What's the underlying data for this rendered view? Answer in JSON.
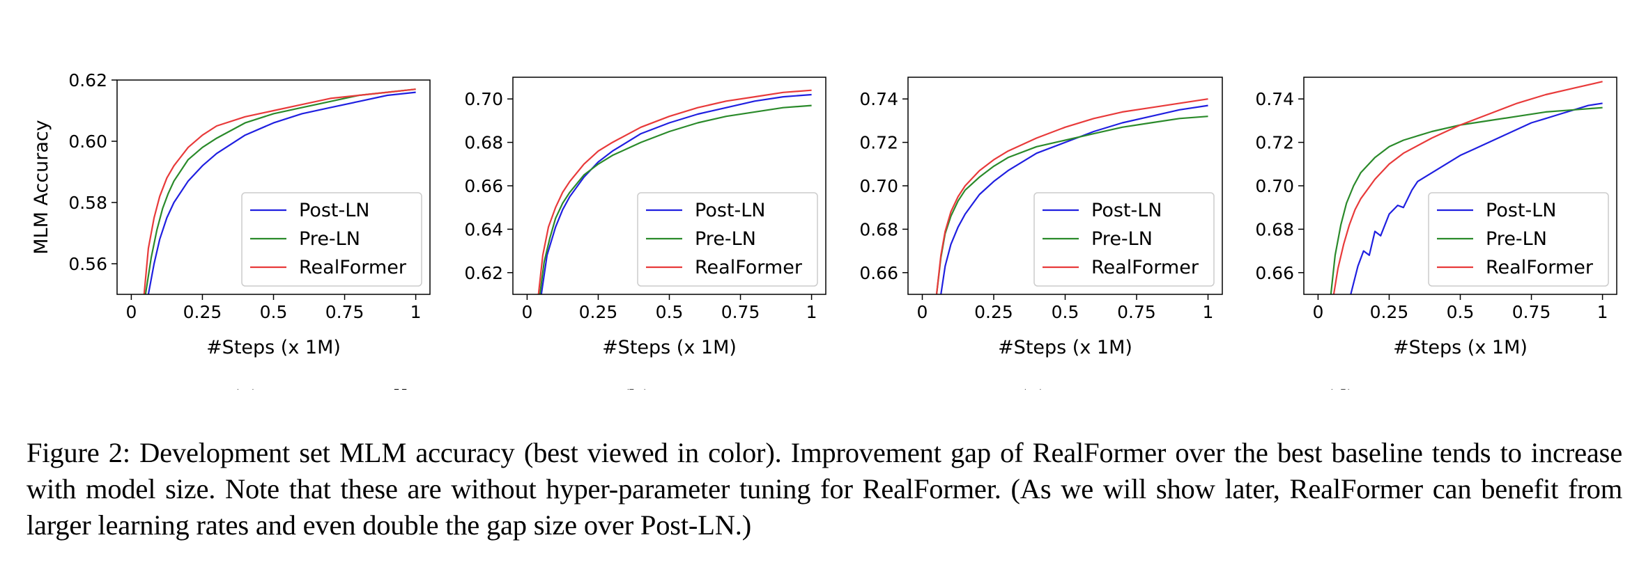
{
  "chart_data": [
    {
      "type": "line",
      "subcaption": "(a) BERT-Small",
      "xlabel": "#Steps (x 1M)",
      "ylabel": "MLM Accuracy",
      "xlim": [
        -0.05,
        1.05
      ],
      "ylim": [
        0.55,
        0.62
      ],
      "xticks": [
        0,
        0.25,
        0.5,
        0.75,
        1
      ],
      "xtick_labels": [
        "0",
        "0.25",
        "0.5",
        "0.75",
        "1"
      ],
      "yticks": [
        0.56,
        0.58,
        0.6,
        0.62
      ],
      "ytick_labels": [
        "0.56",
        "0.58",
        "0.60",
        "0.62"
      ],
      "legend_position": "lower-right",
      "series": [
        {
          "name": "Post-LN",
          "color": "#1f1fe0",
          "x": [
            0.06,
            0.08,
            0.1,
            0.125,
            0.15,
            0.2,
            0.25,
            0.3,
            0.4,
            0.5,
            0.6,
            0.7,
            0.8,
            0.9,
            1.0
          ],
          "y": [
            0.55,
            0.56,
            0.568,
            0.575,
            0.58,
            0.587,
            0.592,
            0.596,
            0.602,
            0.606,
            0.609,
            0.611,
            0.613,
            0.615,
            0.616
          ]
        },
        {
          "name": "Pre-LN",
          "color": "#2a8a2a",
          "x": [
            0.05,
            0.07,
            0.09,
            0.11,
            0.13,
            0.15,
            0.2,
            0.25,
            0.3,
            0.4,
            0.5,
            0.6,
            0.7,
            0.8,
            0.9,
            1.0
          ],
          "y": [
            0.55,
            0.562,
            0.571,
            0.578,
            0.583,
            0.587,
            0.594,
            0.598,
            0.601,
            0.606,
            0.609,
            0.611,
            0.613,
            0.615,
            0.616,
            0.617
          ]
        },
        {
          "name": "RealFormer",
          "color": "#e83a3a",
          "x": [
            0.045,
            0.06,
            0.08,
            0.1,
            0.125,
            0.15,
            0.2,
            0.25,
            0.3,
            0.4,
            0.5,
            0.6,
            0.7,
            0.8,
            0.9,
            1.0
          ],
          "y": [
            0.55,
            0.565,
            0.575,
            0.582,
            0.588,
            0.592,
            0.598,
            0.602,
            0.605,
            0.608,
            0.61,
            0.612,
            0.614,
            0.615,
            0.616,
            0.617
          ]
        }
      ]
    },
    {
      "type": "line",
      "subcaption": "(b) BERT-Base",
      "xlabel": "#Steps (x 1M)",
      "ylabel": "",
      "xlim": [
        -0.05,
        1.05
      ],
      "ylim": [
        0.61,
        0.71
      ],
      "xticks": [
        0,
        0.25,
        0.5,
        0.75,
        1
      ],
      "xtick_labels": [
        "0",
        "0.25",
        "0.5",
        "0.75",
        "1"
      ],
      "yticks": [
        0.62,
        0.64,
        0.66,
        0.68,
        0.7
      ],
      "ytick_labels": [
        "0.62",
        "0.64",
        "0.66",
        "0.68",
        "0.70"
      ],
      "legend_position": "lower-right",
      "series": [
        {
          "name": "Post-LN",
          "color": "#1f1fe0",
          "x": [
            0.05,
            0.07,
            0.1,
            0.125,
            0.15,
            0.2,
            0.25,
            0.3,
            0.4,
            0.5,
            0.6,
            0.7,
            0.8,
            0.9,
            1.0
          ],
          "y": [
            0.61,
            0.628,
            0.641,
            0.649,
            0.655,
            0.664,
            0.671,
            0.676,
            0.684,
            0.689,
            0.693,
            0.696,
            0.699,
            0.701,
            0.702
          ]
        },
        {
          "name": "Pre-LN",
          "color": "#2a8a2a",
          "x": [
            0.045,
            0.06,
            0.08,
            0.1,
            0.125,
            0.15,
            0.2,
            0.25,
            0.3,
            0.4,
            0.5,
            0.6,
            0.7,
            0.8,
            0.9,
            1.0
          ],
          "y": [
            0.61,
            0.625,
            0.636,
            0.645,
            0.652,
            0.657,
            0.665,
            0.67,
            0.674,
            0.68,
            0.685,
            0.689,
            0.692,
            0.694,
            0.696,
            0.697
          ]
        },
        {
          "name": "RealFormer",
          "color": "#e83a3a",
          "x": [
            0.04,
            0.055,
            0.075,
            0.1,
            0.125,
            0.15,
            0.2,
            0.25,
            0.3,
            0.4,
            0.5,
            0.6,
            0.7,
            0.8,
            0.9,
            1.0
          ],
          "y": [
            0.61,
            0.628,
            0.641,
            0.65,
            0.657,
            0.662,
            0.67,
            0.676,
            0.68,
            0.687,
            0.692,
            0.696,
            0.699,
            0.701,
            0.703,
            0.704
          ]
        }
      ]
    },
    {
      "type": "line",
      "subcaption": "(c) BERT-Large",
      "xlabel": "#Steps (x 1M)",
      "ylabel": "",
      "xlim": [
        -0.05,
        1.05
      ],
      "ylim": [
        0.65,
        0.75
      ],
      "xticks": [
        0,
        0.25,
        0.5,
        0.75,
        1
      ],
      "xtick_labels": [
        "0",
        "0.25",
        "0.5",
        "0.75",
        "1"
      ],
      "yticks": [
        0.66,
        0.68,
        0.7,
        0.72,
        0.74
      ],
      "ytick_labels": [
        "0.66",
        "0.68",
        "0.70",
        "0.72",
        "0.74"
      ],
      "legend_position": "lower-right",
      "series": [
        {
          "name": "Post-LN",
          "color": "#1f1fe0",
          "x": [
            0.065,
            0.08,
            0.1,
            0.125,
            0.15,
            0.2,
            0.25,
            0.3,
            0.4,
            0.5,
            0.6,
            0.7,
            0.8,
            0.9,
            1.0
          ],
          "y": [
            0.65,
            0.663,
            0.673,
            0.681,
            0.687,
            0.696,
            0.702,
            0.707,
            0.715,
            0.72,
            0.725,
            0.729,
            0.732,
            0.735,
            0.737
          ]
        },
        {
          "name": "Pre-LN",
          "color": "#2a8a2a",
          "x": [
            0.05,
            0.065,
            0.08,
            0.1,
            0.125,
            0.15,
            0.2,
            0.25,
            0.3,
            0.4,
            0.5,
            0.6,
            0.7,
            0.8,
            0.9,
            1.0
          ],
          "y": [
            0.65,
            0.667,
            0.678,
            0.686,
            0.693,
            0.698,
            0.704,
            0.709,
            0.713,
            0.718,
            0.721,
            0.724,
            0.727,
            0.729,
            0.731,
            0.732
          ]
        },
        {
          "name": "RealFormer",
          "color": "#e83a3a",
          "x": [
            0.05,
            0.065,
            0.08,
            0.1,
            0.125,
            0.15,
            0.2,
            0.25,
            0.3,
            0.4,
            0.5,
            0.6,
            0.7,
            0.8,
            0.9,
            1.0
          ],
          "y": [
            0.65,
            0.668,
            0.679,
            0.688,
            0.695,
            0.7,
            0.707,
            0.712,
            0.716,
            0.722,
            0.727,
            0.731,
            0.734,
            0.736,
            0.738,
            0.74
          ]
        }
      ]
    },
    {
      "type": "line",
      "subcaption": "(d) BERT-xLarge",
      "xlabel": "#Steps (x 1M)",
      "ylabel": "",
      "xlim": [
        -0.05,
        1.05
      ],
      "ylim": [
        0.65,
        0.75
      ],
      "xticks": [
        0,
        0.25,
        0.5,
        0.75,
        1
      ],
      "xtick_labels": [
        "0",
        "0.25",
        "0.5",
        "0.75",
        "1"
      ],
      "yticks": [
        0.66,
        0.68,
        0.7,
        0.72,
        0.74
      ],
      "ytick_labels": [
        "0.66",
        "0.68",
        "0.70",
        "0.72",
        "0.74"
      ],
      "legend_position": "lower-right",
      "series": [
        {
          "name": "Post-LN",
          "color": "#1f1fe0",
          "x": [
            0.115,
            0.14,
            0.16,
            0.18,
            0.2,
            0.22,
            0.25,
            0.28,
            0.3,
            0.33,
            0.35,
            0.4,
            0.45,
            0.5,
            0.55,
            0.6,
            0.65,
            0.7,
            0.75,
            0.8,
            0.85,
            0.9,
            0.95,
            1.0
          ],
          "y": [
            0.65,
            0.663,
            0.67,
            0.668,
            0.679,
            0.677,
            0.687,
            0.691,
            0.69,
            0.698,
            0.702,
            0.706,
            0.71,
            0.714,
            0.717,
            0.72,
            0.723,
            0.726,
            0.729,
            0.731,
            0.733,
            0.735,
            0.737,
            0.738
          ]
        },
        {
          "name": "Pre-LN",
          "color": "#2a8a2a",
          "x": [
            0.045,
            0.06,
            0.08,
            0.1,
            0.125,
            0.15,
            0.2,
            0.25,
            0.3,
            0.35,
            0.4,
            0.5,
            0.6,
            0.7,
            0.8,
            0.9,
            1.0
          ],
          "y": [
            0.65,
            0.668,
            0.682,
            0.692,
            0.7,
            0.706,
            0.713,
            0.718,
            0.721,
            0.723,
            0.725,
            0.728,
            0.73,
            0.732,
            0.734,
            0.735,
            0.736
          ]
        },
        {
          "name": "RealFormer",
          "color": "#e83a3a",
          "x": [
            0.055,
            0.07,
            0.09,
            0.11,
            0.13,
            0.15,
            0.2,
            0.25,
            0.3,
            0.4,
            0.5,
            0.6,
            0.7,
            0.8,
            0.9,
            1.0
          ],
          "y": [
            0.65,
            0.662,
            0.673,
            0.682,
            0.689,
            0.694,
            0.703,
            0.71,
            0.715,
            0.722,
            0.728,
            0.733,
            0.738,
            0.742,
            0.745,
            0.748
          ]
        }
      ]
    }
  ],
  "caption": "Figure 2: Development set MLM accuracy (best viewed in color). Improvement gap of RealFormer over the best baseline tends to increase with model size. Note that these are without hyper-parameter tuning for RealFormer. (As we will show later, RealFormer can benefit from larger learning rates and even double the gap size over Post-LN.)"
}
